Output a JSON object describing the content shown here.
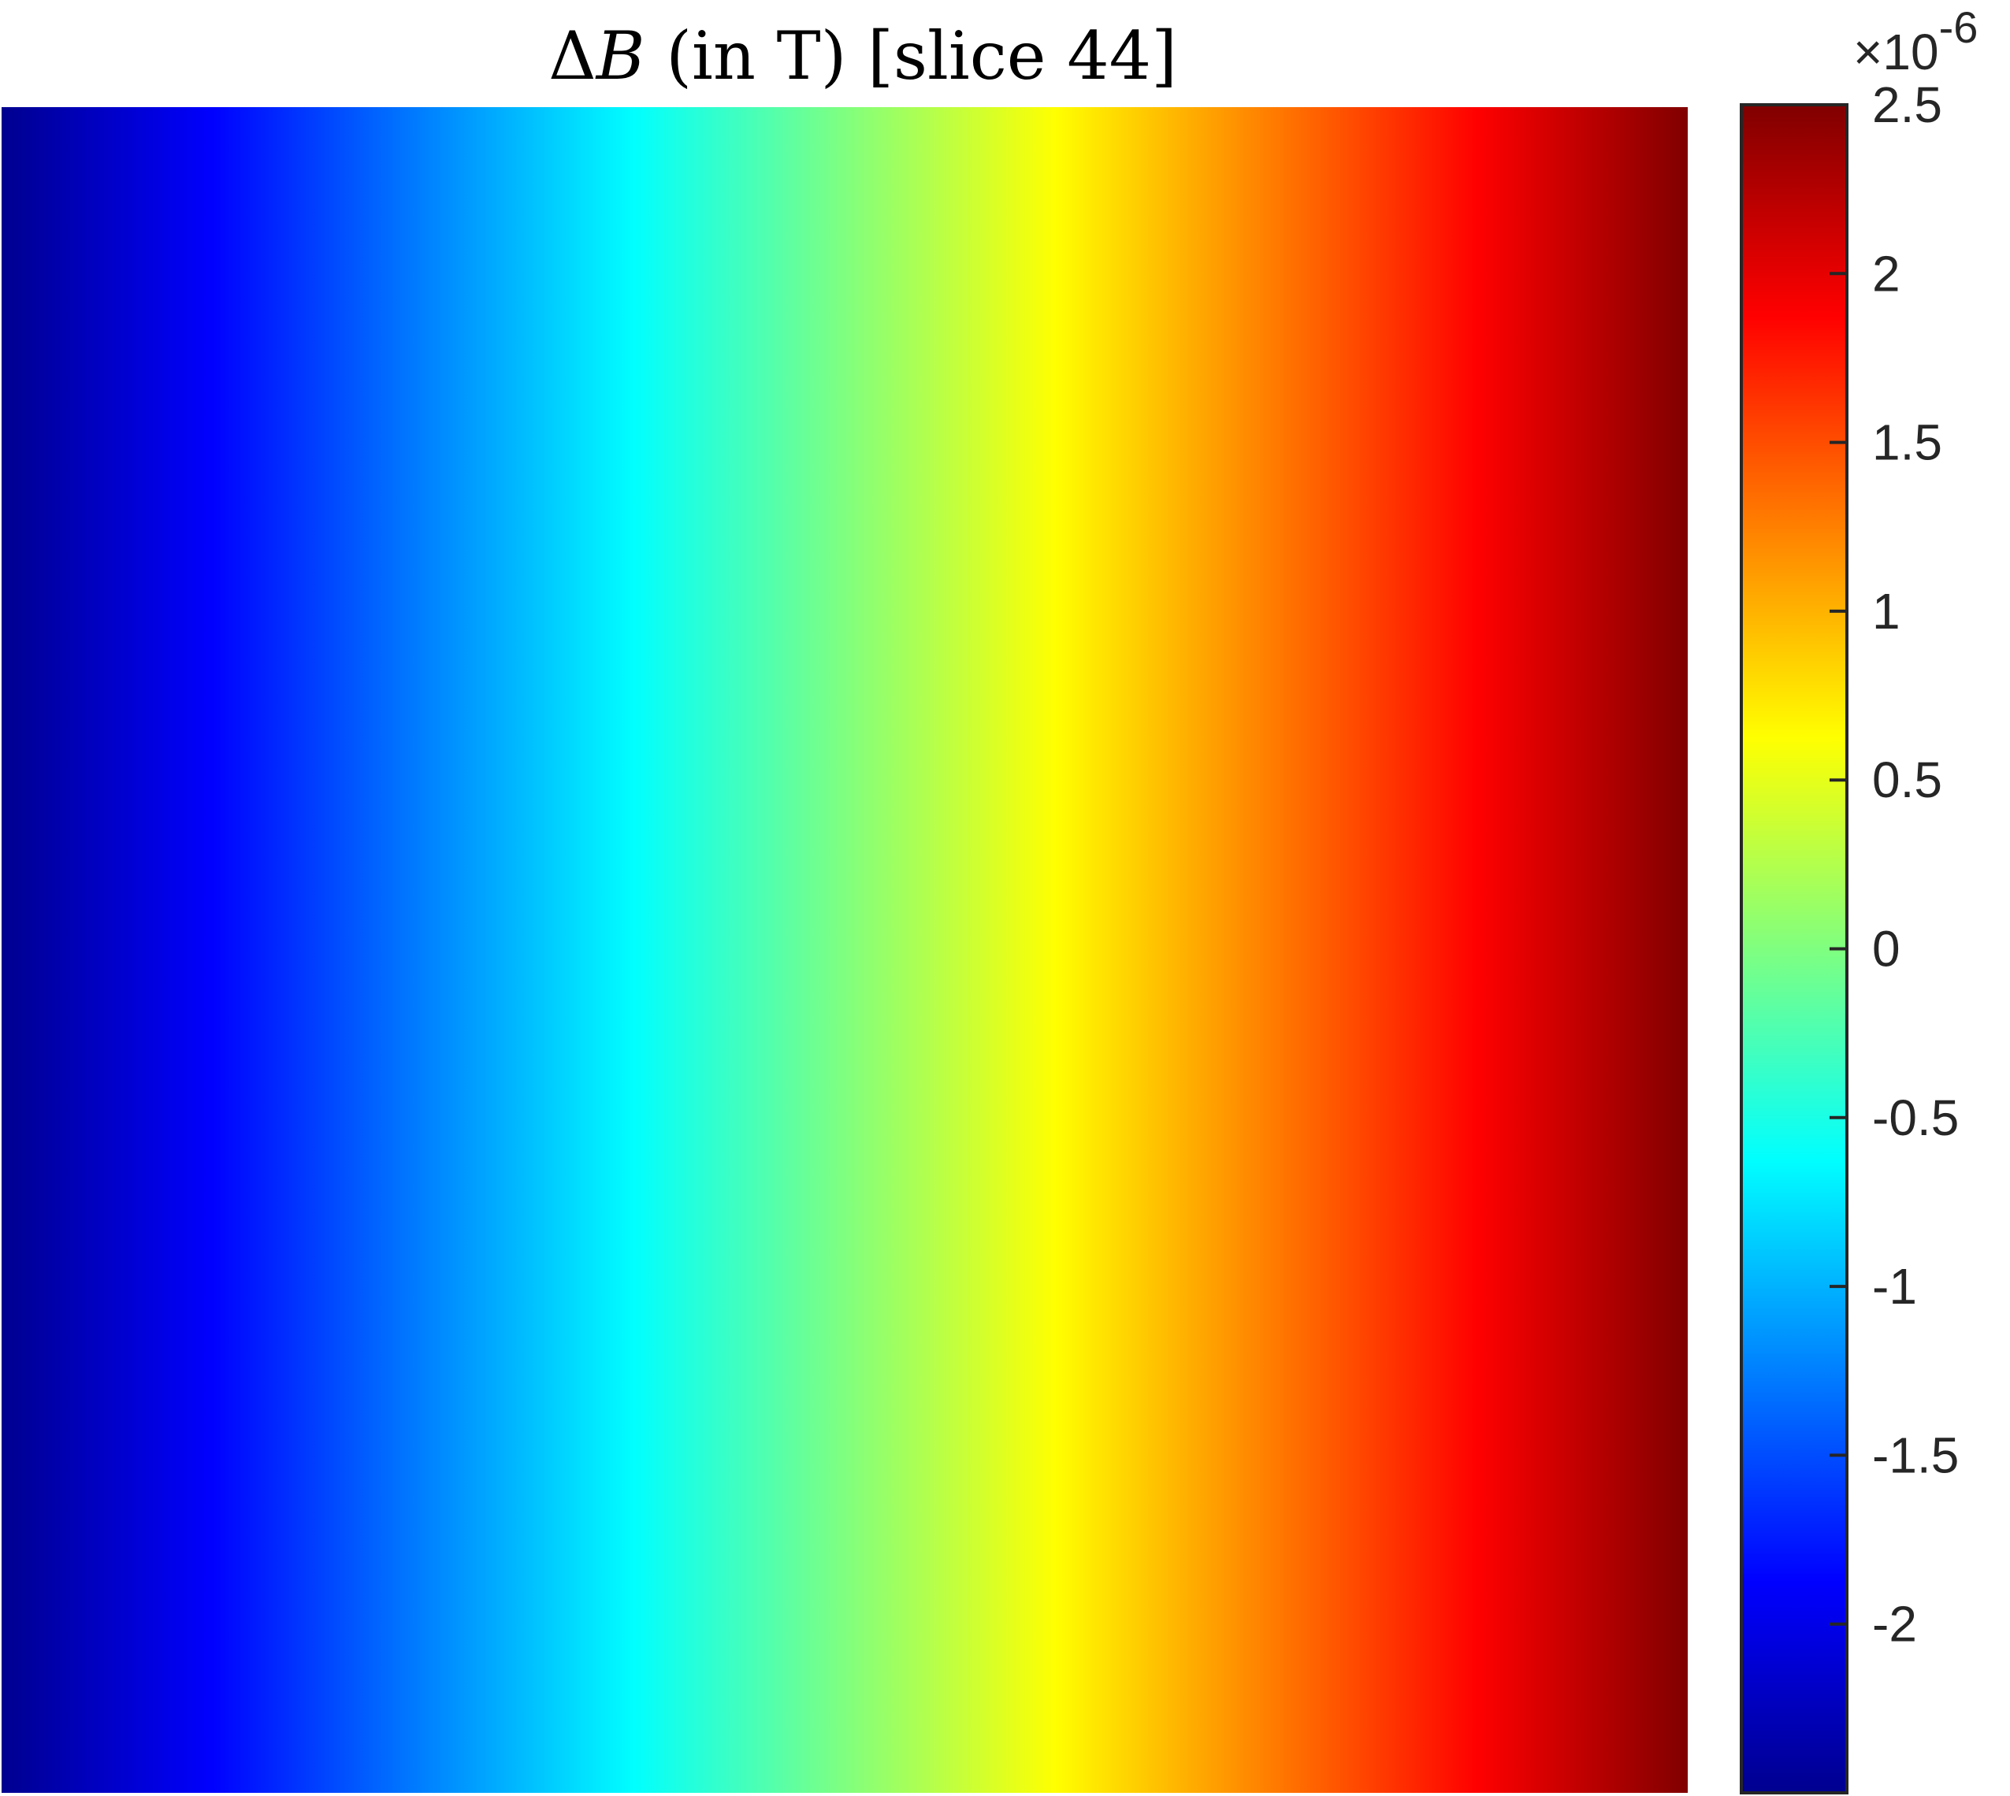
{
  "chart_data": {
    "type": "heatmap",
    "title": "ΔB (in T) [slice 44]",
    "title_parts": {
      "delta": "Δ",
      "var": "B",
      "rest": " (in T) [slice 44]"
    },
    "colormap": "jet",
    "field_direction": "left-to-right",
    "field_range": [
      -2.5e-06,
      2.5e-06
    ],
    "grid": false,
    "colorbar": {
      "placement": "right",
      "range": [
        -2.5,
        2.5
      ],
      "ticks": [
        -2,
        -1.5,
        -1,
        -0.5,
        0,
        0.5,
        1,
        1.5,
        2,
        2.5
      ],
      "tick_labels": [
        "-2",
        "-1.5",
        "-1",
        "-0.5",
        "0",
        "0.5",
        "1",
        "1.5",
        "2",
        "2.5"
      ],
      "exponent_multiplier": "×10",
      "exponent": "-6"
    },
    "colors": {
      "jet_stops": [
        "#00008f",
        "#0000ff",
        "#00ffff",
        "#ffff00",
        "#ff0000",
        "#800000"
      ]
    }
  }
}
